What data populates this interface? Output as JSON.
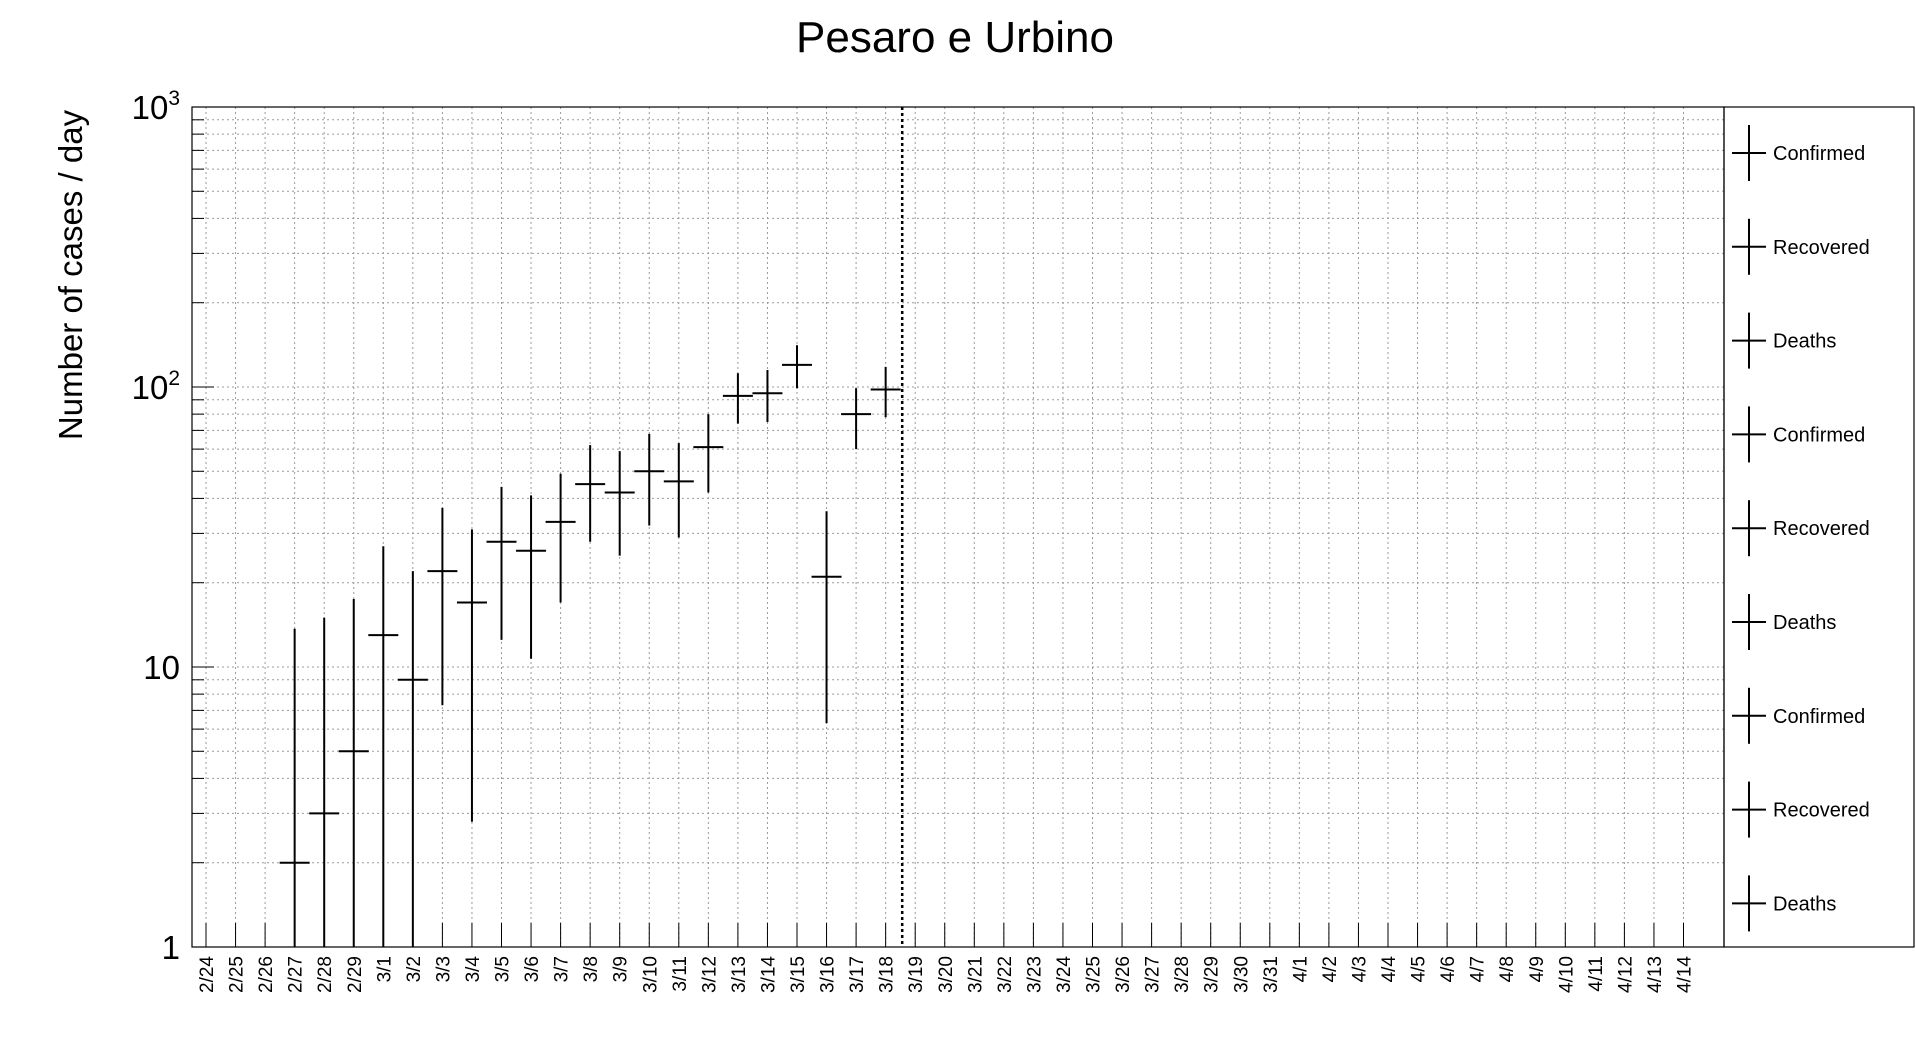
{
  "chart_data": {
    "type": "scatter",
    "title": "Pesaro e Urbino",
    "xlabel": "",
    "ylabel": "Number of cases / day",
    "y_scale": "log",
    "ylim": [
      1,
      1000
    ],
    "y_tick_labels": [
      "1",
      "10",
      "10",
      "10"
    ],
    "y_tick_exponents": [
      "",
      "",
      "2",
      "3"
    ],
    "grid": true,
    "categories": [
      "2/24",
      "2/25",
      "2/26",
      "2/27",
      "2/28",
      "2/29",
      "3/1",
      "3/2",
      "3/3",
      "3/4",
      "3/5",
      "3/6",
      "3/7",
      "3/8",
      "3/9",
      "3/10",
      "3/11",
      "3/12",
      "3/13",
      "3/14",
      "3/15",
      "3/16",
      "3/17",
      "3/18",
      "3/19",
      "3/20",
      "3/21",
      "3/22",
      "3/23",
      "3/24",
      "3/25",
      "3/26",
      "3/27",
      "3/28",
      "3/29",
      "3/30",
      "3/31",
      "4/1",
      "4/2",
      "4/3",
      "4/4",
      "4/5",
      "4/6",
      "4/7",
      "4/8",
      "4/9",
      "4/10",
      "4/11",
      "4/12",
      "4/13",
      "4/14"
    ],
    "series": [
      {
        "name": "Confirmed",
        "points": [
          {
            "x": "2/27",
            "y": 2,
            "y_low": 1,
            "y_high": 13.7
          },
          {
            "x": "2/28",
            "y": 3,
            "y_low": 1,
            "y_high": 15
          },
          {
            "x": "2/29",
            "y": 5,
            "y_low": 1,
            "y_high": 17.5
          },
          {
            "x": "3/1",
            "y": 13,
            "y_low": 1,
            "y_high": 27
          },
          {
            "x": "3/2",
            "y": 9,
            "y_low": 1,
            "y_high": 22
          },
          {
            "x": "3/3",
            "y": 22,
            "y_low": 7.3,
            "y_high": 37
          },
          {
            "x": "3/4",
            "y": 17,
            "y_low": 2.8,
            "y_high": 31
          },
          {
            "x": "3/5",
            "y": 28,
            "y_low": 12.5,
            "y_high": 44
          },
          {
            "x": "3/6",
            "y": 26,
            "y_low": 10.7,
            "y_high": 41
          },
          {
            "x": "3/7",
            "y": 33,
            "y_low": 17,
            "y_high": 49
          },
          {
            "x": "3/8",
            "y": 45,
            "y_low": 28,
            "y_high": 62
          },
          {
            "x": "3/9",
            "y": 42,
            "y_low": 25,
            "y_high": 59
          },
          {
            "x": "3/10",
            "y": 50,
            "y_low": 32,
            "y_high": 68
          },
          {
            "x": "3/11",
            "y": 46,
            "y_low": 29,
            "y_high": 63
          },
          {
            "x": "3/12",
            "y": 61,
            "y_low": 42,
            "y_high": 80
          },
          {
            "x": "3/13",
            "y": 93,
            "y_low": 74,
            "y_high": 112
          },
          {
            "x": "3/14",
            "y": 95,
            "y_low": 75,
            "y_high": 115
          },
          {
            "x": "3/15",
            "y": 120,
            "y_low": 99,
            "y_high": 141
          },
          {
            "x": "3/16",
            "y": 21,
            "y_low": 6.3,
            "y_high": 36
          },
          {
            "x": "3/17",
            "y": 80,
            "y_low": 60,
            "y_high": 99
          },
          {
            "x": "3/18",
            "y": 98,
            "y_low": 78,
            "y_high": 118
          }
        ]
      }
    ],
    "marker_line": {
      "x": "3/19",
      "style": "dotted"
    },
    "legend": {
      "placement": "right",
      "entries": [
        "Confirmed",
        "Recovered",
        "Deaths",
        "Confirmed",
        "Recovered",
        "Deaths",
        "Confirmed",
        "Recovered",
        "Deaths"
      ]
    }
  }
}
